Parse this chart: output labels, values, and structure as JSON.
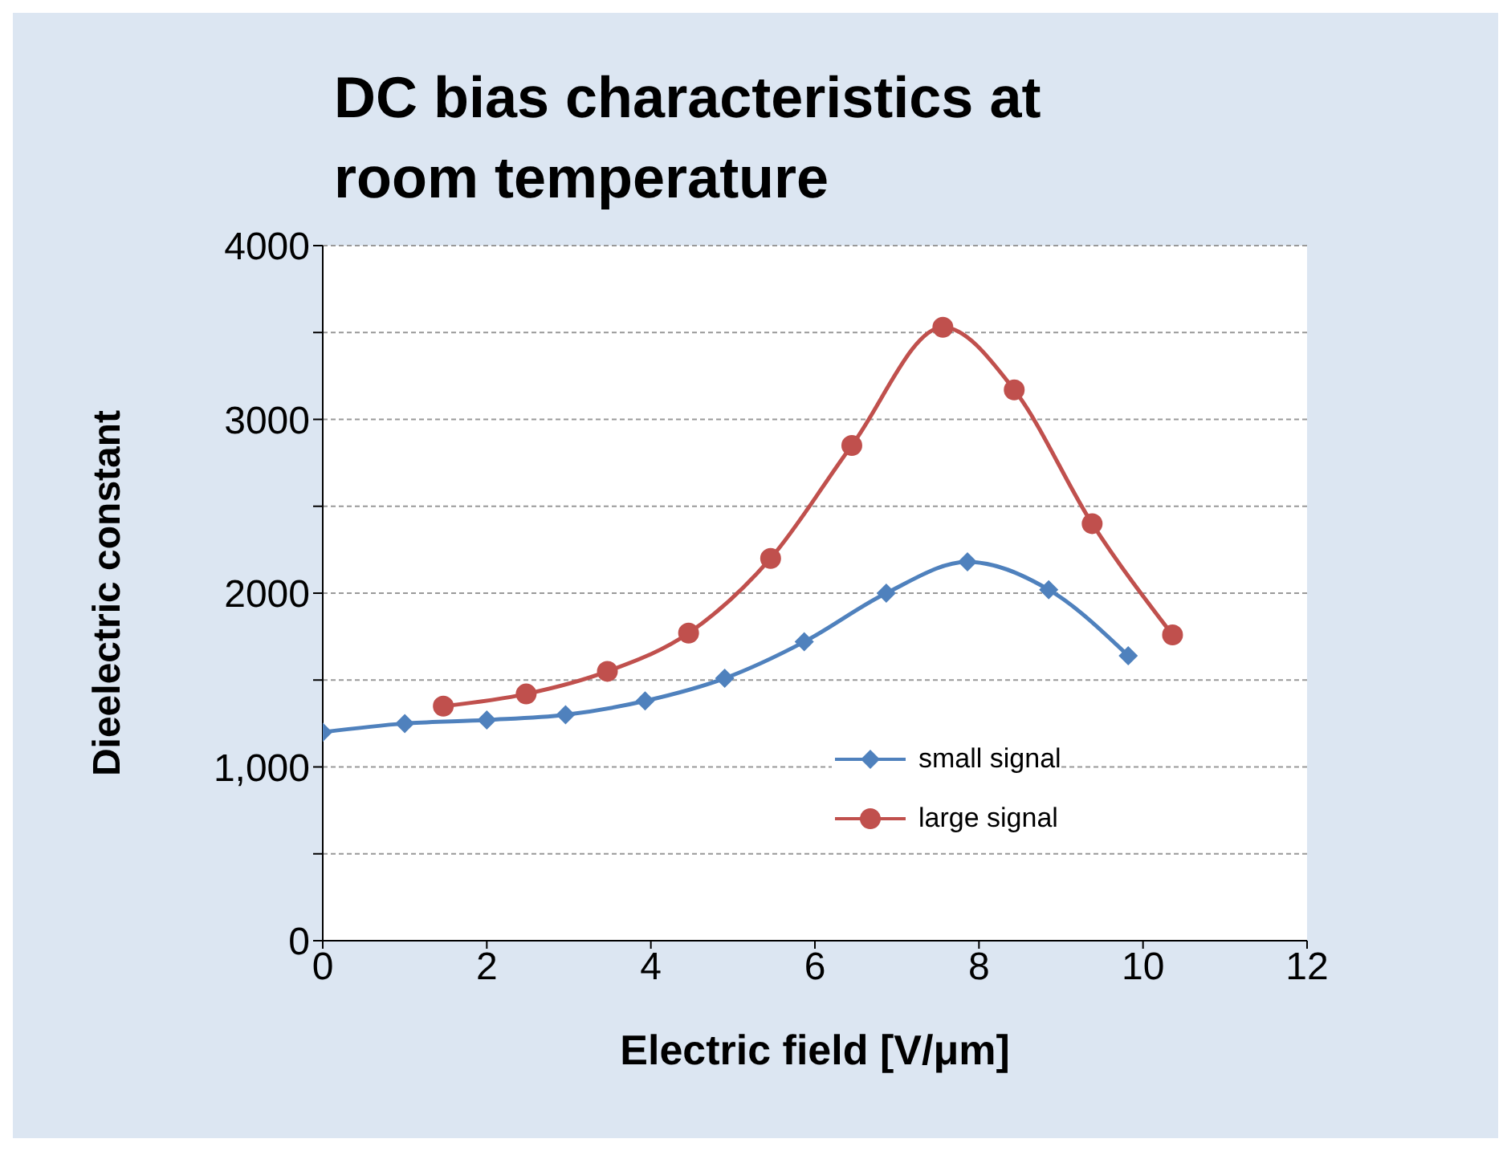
{
  "chart_data": {
    "type": "line",
    "title": "DC bias characteristics at room temperature",
    "xlabel": "Electric field [V/μm]",
    "ylabel": "Dieelectric constant",
    "xlim": [
      0,
      12
    ],
    "xticks": [
      0,
      2,
      4,
      6,
      8,
      10,
      12
    ],
    "ylim": [
      0,
      4000
    ],
    "yticks": [
      0,
      {
        "value": 500,
        "label": null
      },
      {
        "value": 1000,
        "label": "1,000"
      },
      {
        "value": 1500,
        "label": null
      },
      2000,
      {
        "value": 2500,
        "label": null
      },
      3000,
      {
        "value": 3500,
        "label": null
      },
      4000
    ],
    "grid": "y",
    "legend": "bottom right",
    "series": [
      {
        "name": "small signal",
        "color": "#4f81bd",
        "marker": "diamond",
        "x": [
          0,
          1,
          2,
          2.96,
          3.93,
          4.9,
          5.87,
          6.87,
          7.86,
          8.85,
          9.82
        ],
        "values": [
          1200,
          1250,
          1270,
          1300,
          1380,
          1510,
          1720,
          2000,
          2180,
          2020,
          1640
        ]
      },
      {
        "name": "large signal",
        "color": "#c0504d",
        "marker": "circle",
        "x": [
          1.47,
          2.48,
          3.47,
          4.46,
          5.46,
          6.45,
          7.56,
          8.43,
          9.38,
          10.36
        ],
        "values": [
          1350,
          1420,
          1550,
          1770,
          2200,
          2850,
          3530,
          3170,
          2400,
          1760
        ]
      }
    ]
  }
}
